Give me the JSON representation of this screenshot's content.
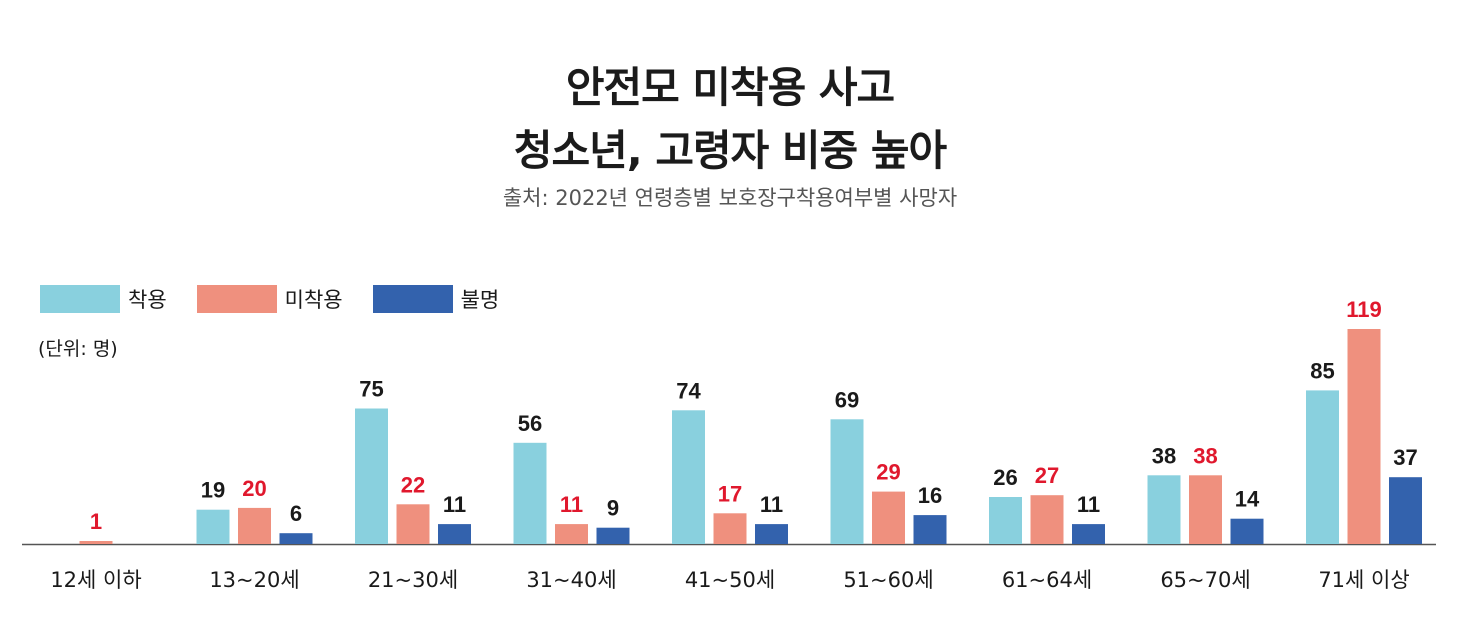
{
  "title": {
    "line1": "안전모 미착용 사고",
    "line2": "청소년, 고령자 비중 높아"
  },
  "subtitle": "출처: 2022년 연령층별 보호장구착용여부별 사망자",
  "unit_label": "(단위: 명)",
  "colors": {
    "worn": "#89d0de",
    "not_worn": "#ef907e",
    "unknown": "#3362ad",
    "highlight_label": "#e0182d",
    "default_label": "#1a1a1a",
    "axis": "#555555"
  },
  "chart_data": {
    "type": "bar",
    "categories": [
      "12세 이하",
      "13~20세",
      "21~30세",
      "31~40세",
      "41~50세",
      "51~60세",
      "61~64세",
      "65~70세",
      "71세 이상"
    ],
    "series": [
      {
        "name": "착용",
        "color": "#89d0de",
        "values": [
          null,
          19,
          75,
          56,
          74,
          69,
          26,
          38,
          85
        ]
      },
      {
        "name": "미착용",
        "color": "#ef907e",
        "values": [
          1,
          20,
          22,
          11,
          17,
          29,
          27,
          38,
          119
        ]
      },
      {
        "name": "불명",
        "color": "#3362ad",
        "values": [
          null,
          6,
          11,
          9,
          11,
          16,
          11,
          14,
          37
        ]
      }
    ],
    "ylim": [
      0,
      119
    ],
    "legend_position": "top-left",
    "grid": false,
    "highlight_series": "미착용"
  }
}
